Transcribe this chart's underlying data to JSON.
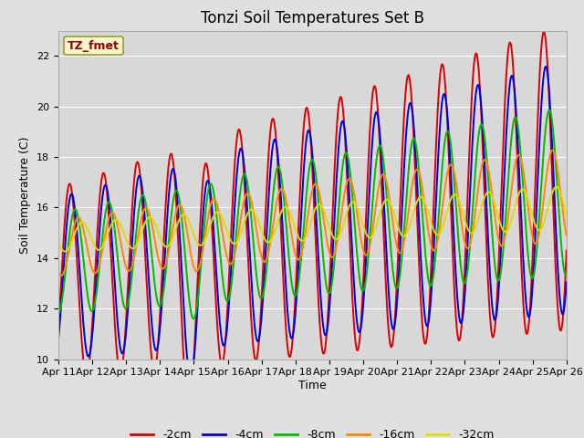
{
  "title": "Tonzi Soil Temperatures Set B",
  "xlabel": "Time",
  "ylabel": "Soil Temperature (C)",
  "xlim_start": 0,
  "xlim_end": 15,
  "ylim": [
    10,
    23
  ],
  "yticks": [
    10,
    12,
    14,
    16,
    18,
    20,
    22
  ],
  "xtick_labels": [
    "Apr 11",
    "Apr 12",
    "Apr 13",
    "Apr 14",
    "Apr 15",
    "Apr 16",
    "Apr 17",
    "Apr 18",
    "Apr 19",
    "Apr 20",
    "Apr 21",
    "Apr 22",
    "Apr 23",
    "Apr 24",
    "Apr 25",
    "Apr 26"
  ],
  "fig_bg_color": "#e0e0e0",
  "plot_bg_color": "#d8d8d8",
  "legend_label": "TZ_fmet",
  "legend_bg": "#ffffcc",
  "legend_border": "#888800",
  "series": [
    {
      "label": "-2cm",
      "color": "#dd0000",
      "lw": 1.4
    },
    {
      "label": "-4cm",
      "color": "#0000dd",
      "lw": 1.4
    },
    {
      "label": "-8cm",
      "color": "#00bb00",
      "lw": 1.4
    },
    {
      "label": "-16cm",
      "color": "#ff8800",
      "lw": 1.4
    },
    {
      "label": "-32cm",
      "color": "#dddd00",
      "lw": 1.4
    }
  ],
  "title_fontsize": 12,
  "axis_label_fontsize": 9,
  "tick_fontsize": 8
}
